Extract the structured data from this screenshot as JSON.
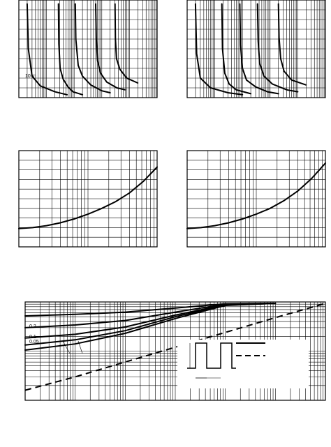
{
  "chart_data": [
    {
      "type": "line",
      "panel": "top-left",
      "grid": true,
      "x_scale": "log",
      "annotations": [
        "10 m"
      ],
      "series": [
        {
          "values": [
            [
              0.02,
              0.96
            ],
            [
              0.022,
              0.5
            ],
            [
              0.03,
              0.22
            ],
            [
              0.06,
              0.12
            ],
            [
              0.2,
              0.06
            ],
            [
              0.55,
              0.03
            ]
          ]
        },
        {
          "values": [
            [
              0.27,
              0.96
            ],
            [
              0.28,
              0.55
            ],
            [
              0.31,
              0.3
            ],
            [
              0.4,
              0.19
            ],
            [
              0.6,
              0.11
            ],
            [
              0.9,
              0.06
            ],
            [
              2,
              0.03
            ]
          ]
        },
        {
          "values": [
            [
              1.1,
              0.96
            ],
            [
              1.15,
              0.6
            ],
            [
              1.4,
              0.33
            ],
            [
              2,
              0.22
            ],
            [
              4,
              0.13
            ],
            [
              10,
              0.07
            ],
            [
              20,
              0.05
            ]
          ]
        },
        {
          "values": [
            [
              6,
              0.96
            ],
            [
              6.3,
              0.6
            ],
            [
              7,
              0.38
            ],
            [
              9,
              0.25
            ],
            [
              15,
              0.16
            ],
            [
              35,
              0.1
            ],
            [
              70,
              0.08
            ]
          ]
        },
        {
          "values": [
            [
              30,
              0.96
            ],
            [
              31,
              0.6
            ],
            [
              34,
              0.4
            ],
            [
              45,
              0.29
            ],
            [
              80,
              0.2
            ],
            [
              200,
              0.15
            ]
          ]
        }
      ]
    },
    {
      "type": "line",
      "panel": "top-right",
      "grid": true,
      "x_scale": "log",
      "series": [
        {
          "values": [
            [
              0.02,
              0.96
            ],
            [
              0.022,
              0.45
            ],
            [
              0.03,
              0.2
            ],
            [
              0.07,
              0.1
            ],
            [
              0.3,
              0.05
            ],
            [
              1,
              0.03
            ]
          ]
        },
        {
          "values": [
            [
              0.18,
              0.96
            ],
            [
              0.19,
              0.5
            ],
            [
              0.23,
              0.25
            ],
            [
              0.33,
              0.14
            ],
            [
              0.6,
              0.08
            ],
            [
              2,
              0.04
            ]
          ]
        },
        {
          "values": [
            [
              0.8,
              0.96
            ],
            [
              0.85,
              0.55
            ],
            [
              1,
              0.3
            ],
            [
              1.4,
              0.18
            ],
            [
              3,
              0.11
            ],
            [
              8,
              0.06
            ],
            [
              20,
              0.04
            ]
          ]
        },
        {
          "values": [
            [
              3.5,
              0.96
            ],
            [
              3.7,
              0.58
            ],
            [
              4.2,
              0.35
            ],
            [
              6,
              0.22
            ],
            [
              12,
              0.14
            ],
            [
              40,
              0.08
            ],
            [
              100,
              0.06
            ]
          ]
        },
        {
          "values": [
            [
              20,
              0.96
            ],
            [
              21,
              0.62
            ],
            [
              24,
              0.4
            ],
            [
              32,
              0.27
            ],
            [
              60,
              0.18
            ],
            [
              200,
              0.13
            ]
          ]
        }
      ]
    },
    {
      "type": "line",
      "panel": "middle-left",
      "grid": true,
      "x_range": [
        0,
        1
      ],
      "y_range": [
        0,
        1
      ],
      "series": [
        {
          "values": [
            [
              0,
              0.19
            ],
            [
              0.1,
              0.2
            ],
            [
              0.2,
              0.22
            ],
            [
              0.3,
              0.25
            ],
            [
              0.4,
              0.29
            ],
            [
              0.5,
              0.34
            ],
            [
              0.6,
              0.4
            ],
            [
              0.7,
              0.47
            ],
            [
              0.8,
              0.56
            ],
            [
              0.9,
              0.68
            ],
            [
              1,
              0.83
            ]
          ]
        }
      ]
    },
    {
      "type": "line",
      "panel": "middle-right",
      "grid": true,
      "x_range": [
        0,
        1
      ],
      "y_range": [
        0,
        1
      ],
      "series": [
        {
          "values": [
            [
              0,
              0.19
            ],
            [
              0.1,
              0.2
            ],
            [
              0.2,
              0.22
            ],
            [
              0.3,
              0.25
            ],
            [
              0.4,
              0.29
            ],
            [
              0.5,
              0.34
            ],
            [
              0.6,
              0.4
            ],
            [
              0.7,
              0.48
            ],
            [
              0.8,
              0.58
            ],
            [
              0.9,
              0.71
            ],
            [
              1,
              0.87
            ]
          ]
        }
      ]
    },
    {
      "type": "line",
      "panel": "bottom",
      "grid": true,
      "x_scale": "log",
      "x_range": [
        1e-05,
        10
      ],
      "y_scale": "log",
      "y_range": [
        0.01,
        1
      ],
      "curve_labels": [
        "0.2",
        "0.1",
        "0.05"
      ],
      "series": [
        {
          "values": [
            [
              1e-05,
              0.52
            ],
            [
              0.0001,
              0.56
            ],
            [
              0.001,
              0.62
            ],
            [
              0.01,
              0.75
            ],
            [
              0.1,
              0.92
            ],
            [
              1,
              1.0
            ]
          ]
        },
        {
          "values": [
            [
              1e-05,
              0.3
            ],
            [
              0.0001,
              0.34
            ],
            [
              0.001,
              0.42
            ],
            [
              0.01,
              0.62
            ],
            [
              0.1,
              0.9
            ],
            [
              1,
              1.0
            ]
          ]
        },
        {
          "values": [
            [
              1e-05,
              0.185
            ],
            [
              0.0001,
              0.22
            ],
            [
              0.001,
              0.31
            ],
            [
              0.01,
              0.54
            ],
            [
              0.1,
              0.88
            ],
            [
              1,
              1.0
            ]
          ]
        },
        {
          "values": [
            [
              1e-05,
              0.133
            ],
            [
              0.0001,
              0.17
            ],
            [
              0.001,
              0.26
            ],
            [
              0.01,
              0.5
            ],
            [
              0.1,
              0.86
            ],
            [
              1,
              1.0
            ]
          ]
        },
        {
          "values": [
            [
              1e-05,
              0.105
            ],
            [
              0.0001,
              0.14
            ],
            [
              0.001,
              0.23
            ],
            [
              0.01,
              0.46
            ],
            [
              0.1,
              0.85
            ],
            [
              1,
              1.0
            ]
          ]
        },
        {
          "values": [
            [
              1e-05,
              0.016
            ],
            [
              0.0001,
              0.03
            ],
            [
              0.001,
              0.06
            ],
            [
              0.01,
              0.12
            ],
            [
              0.1,
              0.24
            ],
            [
              1,
              0.48
            ],
            [
              10,
              0.95
            ]
          ],
          "style": "dashed"
        }
      ],
      "inset": {
        "pulse_count": 2,
        "legend_styles": [
          "solid",
          "dashed"
        ]
      }
    }
  ]
}
